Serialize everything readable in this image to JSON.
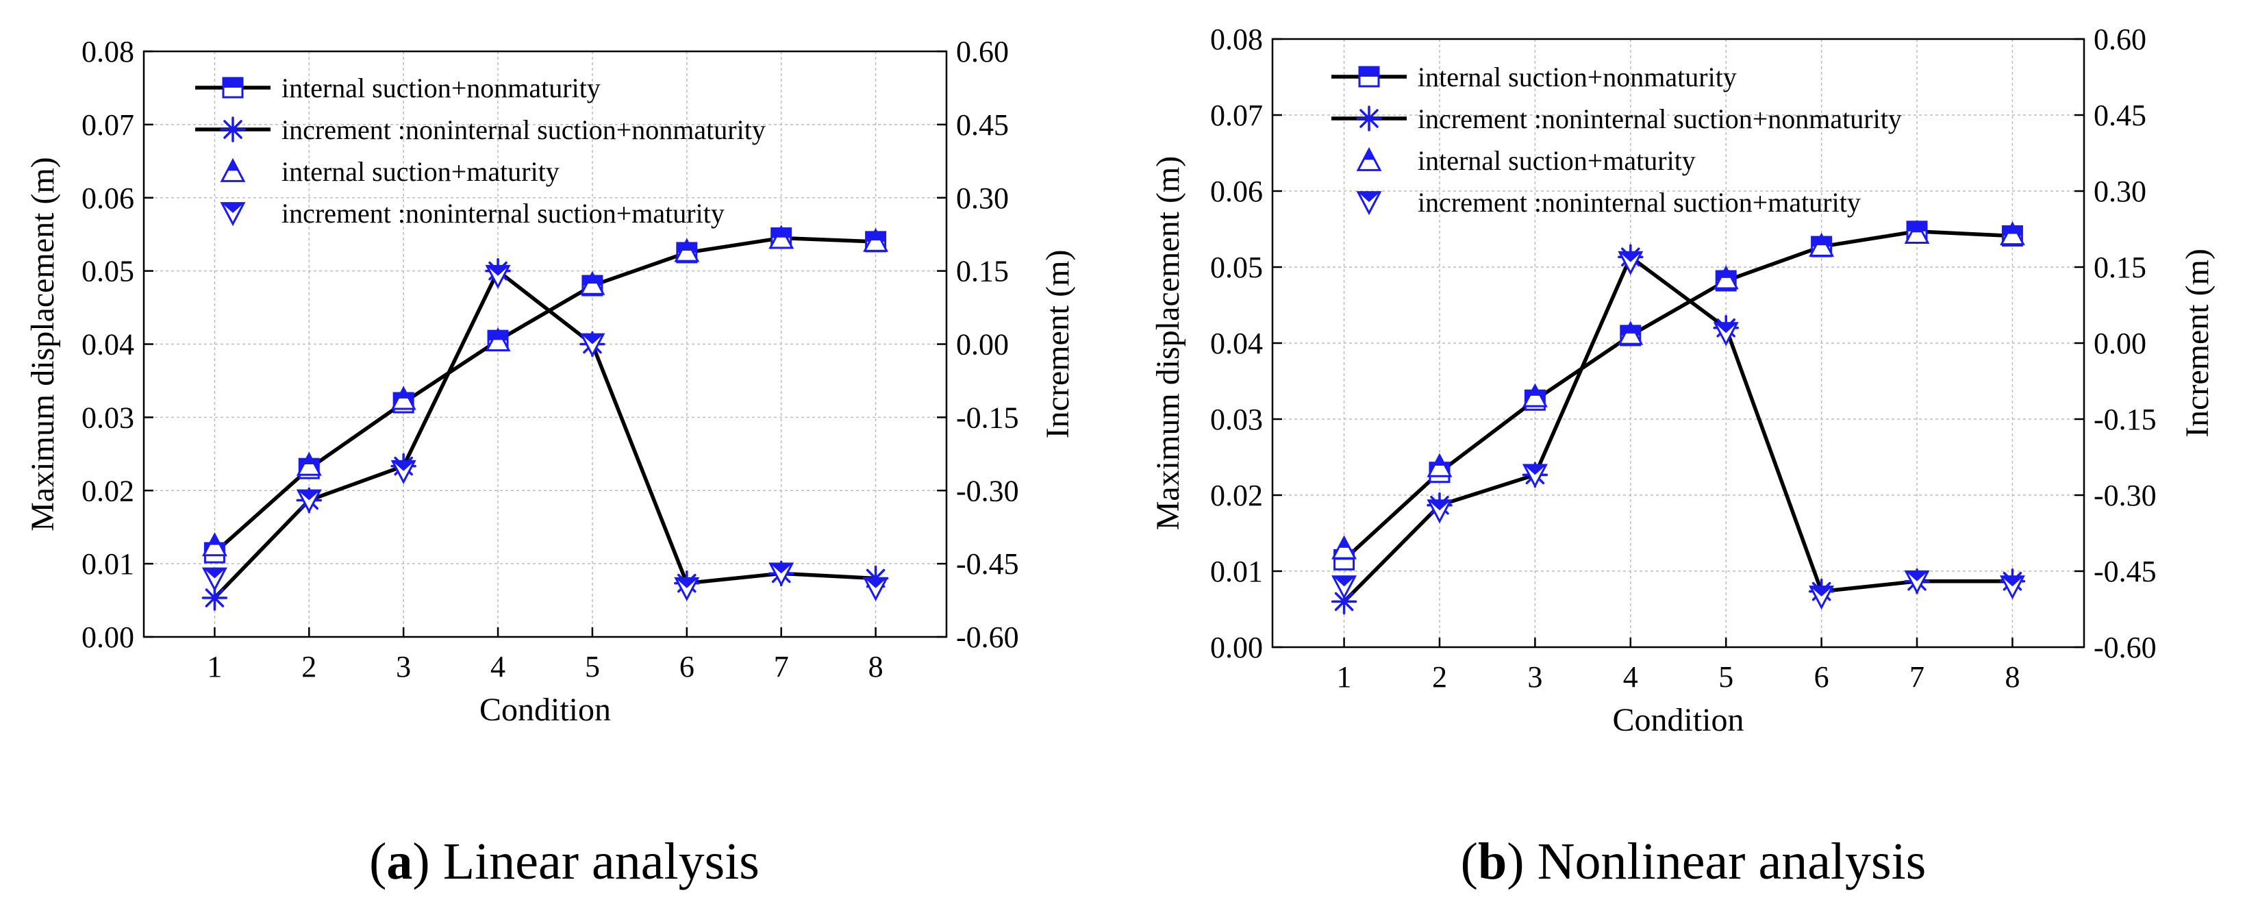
{
  "colors": {
    "marker": "#1a1af0",
    "line": "#000000",
    "grid": "#bbbbbb"
  },
  "chart_data": [
    {
      "type": "line",
      "caption": {
        "label": "a",
        "text": "Linear analysis"
      },
      "xlabel": "Condition",
      "ylabel": "Maximum displacement (m)",
      "y2label": "Increment (m)",
      "categories": [
        1,
        2,
        3,
        4,
        5,
        6,
        7,
        8
      ],
      "xticks": [
        "1",
        "2",
        "3",
        "4",
        "5",
        "6",
        "7",
        "8"
      ],
      "ylim": [
        0,
        0.08
      ],
      "yticks": [
        "0.00",
        "0.01",
        "0.02",
        "0.03",
        "0.04",
        "0.05",
        "0.06",
        "0.07",
        "0.08"
      ],
      "y2lim": [
        -0.6,
        0.6
      ],
      "y2ticks": [
        "-0.60",
        "-0.45",
        "-0.30",
        "-0.15",
        "0.00",
        "0.15",
        "0.30",
        "0.45",
        "0.60"
      ],
      "series": [
        {
          "name": "internal suction+nonmaturity",
          "axis": "left",
          "marker": "square",
          "line": true,
          "values": [
            0.0115,
            0.023,
            0.032,
            0.0405,
            0.048,
            0.0525,
            0.0545,
            0.054
          ]
        },
        {
          "name": "increment :noninternal suction+nonmaturity",
          "axis": "right",
          "marker": "asterisk",
          "line": true,
          "values": [
            -0.52,
            -0.32,
            -0.25,
            0.15,
            0.0,
            -0.49,
            -0.47,
            -0.48
          ]
        },
        {
          "name": "internal suction+maturity",
          "axis": "left",
          "marker": "triangle-up",
          "line": false,
          "values": [
            0.0125,
            0.0235,
            0.0325,
            0.0405,
            0.0482,
            0.0527,
            0.0545,
            0.0541
          ]
        },
        {
          "name": "increment :noninternal suction+maturity",
          "axis": "right",
          "marker": "triangle-down",
          "line": false,
          "values": [
            -0.48,
            -0.32,
            -0.26,
            0.14,
            0.0,
            -0.5,
            -0.47,
            -0.5
          ]
        }
      ]
    },
    {
      "type": "line",
      "caption": {
        "label": "b",
        "text": "Nonlinear analysis"
      },
      "xlabel": "Condition",
      "ylabel": "Maximum displacement (m)",
      "y2label": "Increment (m)",
      "categories": [
        1,
        2,
        3,
        4,
        5,
        6,
        7,
        8
      ],
      "xticks": [
        "1",
        "2",
        "3",
        "4",
        "5",
        "6",
        "7",
        "8"
      ],
      "ylim": [
        0,
        0.08
      ],
      "yticks": [
        "0.00",
        "0.01",
        "0.02",
        "0.03",
        "0.04",
        "0.05",
        "0.06",
        "0.07",
        "0.08"
      ],
      "y2lim": [
        -0.6,
        0.6
      ],
      "y2ticks": [
        "-0.60",
        "-0.45",
        "-0.30",
        "-0.15",
        "0.00",
        "0.15",
        "0.30",
        "0.45",
        "0.60"
      ],
      "series": [
        {
          "name": "internal suction+nonmaturity",
          "axis": "left",
          "marker": "square",
          "line": true,
          "values": [
            0.0115,
            0.023,
            0.0325,
            0.041,
            0.0482,
            0.0527,
            0.0547,
            0.0541
          ]
        },
        {
          "name": "increment :noninternal suction+nonmaturity",
          "axis": "right",
          "marker": "asterisk",
          "line": true,
          "values": [
            -0.51,
            -0.32,
            -0.26,
            0.17,
            0.03,
            -0.49,
            -0.47,
            -0.47
          ]
        },
        {
          "name": "internal suction+maturity",
          "axis": "left",
          "marker": "triangle-up",
          "line": false,
          "values": [
            0.013,
            0.0238,
            0.033,
            0.0412,
            0.0485,
            0.0528,
            0.0545,
            0.0543
          ]
        },
        {
          "name": "increment :noninternal suction+maturity",
          "axis": "right",
          "marker": "triangle-down",
          "line": false,
          "values": [
            -0.48,
            -0.33,
            -0.26,
            0.16,
            0.02,
            -0.5,
            -0.47,
            -0.48
          ]
        }
      ]
    }
  ]
}
